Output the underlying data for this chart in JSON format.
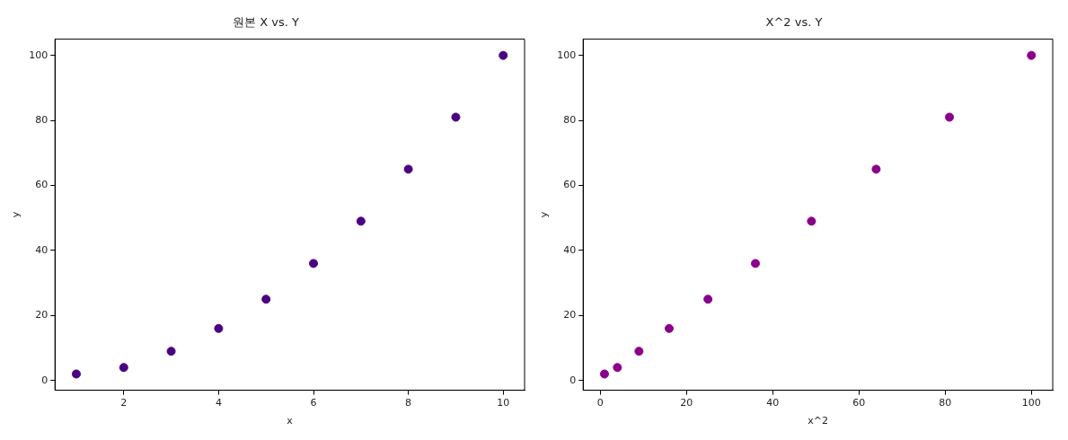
{
  "chart_data": [
    {
      "type": "scatter",
      "title": "원본 X vs. Y",
      "xlabel": "x",
      "ylabel": "y",
      "x": [
        1,
        2,
        3,
        4,
        5,
        6,
        7,
        8,
        9,
        10
      ],
      "values": [
        2,
        4,
        9,
        16,
        25,
        36,
        49,
        65,
        81,
        100
      ],
      "color": "#4b0082",
      "marker": "circle",
      "xlim": [
        0.55,
        10.45
      ],
      "xticks": [
        2,
        4,
        6,
        8,
        10
      ],
      "ylim": [
        -3,
        105
      ],
      "yticks": [
        0,
        20,
        40,
        60,
        80,
        100
      ]
    },
    {
      "type": "scatter",
      "title": "X^2 vs. Y",
      "xlabel": "x^2",
      "ylabel": "y",
      "x": [
        1,
        4,
        9,
        16,
        25,
        36,
        49,
        64,
        81,
        100
      ],
      "values": [
        2,
        4,
        9,
        16,
        25,
        36,
        49,
        65,
        81,
        100
      ],
      "color": "#8b008b",
      "marker": "circle",
      "xlim": [
        -3.95,
        104.95
      ],
      "xticks": [
        0,
        20,
        40,
        60,
        80,
        100
      ],
      "ylim": [
        -3,
        105
      ],
      "yticks": [
        0,
        20,
        40,
        60,
        80,
        100
      ]
    }
  ]
}
